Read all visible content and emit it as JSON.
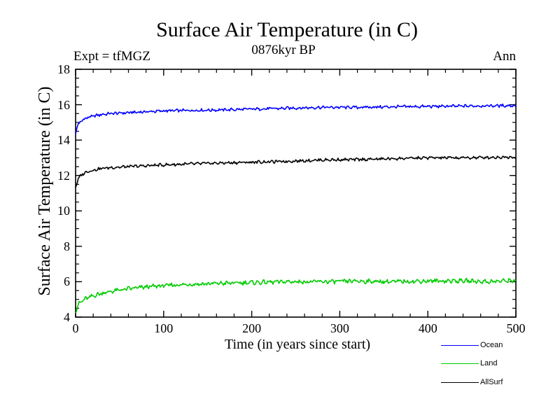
{
  "chart_data": {
    "type": "line",
    "title": "Surface Air Temperature (in C)",
    "subtitle": "0876kyr BP",
    "expt_label": "Expt = tfMGZ",
    "annotation": "Ann",
    "xlabel": "Time (in years since start)",
    "ylabel": "Surface Air Temperature (in C)",
    "xlim": [
      0,
      500
    ],
    "ylim": [
      4,
      18
    ],
    "x_major_ticks": [
      0,
      100,
      200,
      300,
      400,
      500
    ],
    "x_minor_step": 20,
    "y_major_ticks": [
      4,
      6,
      8,
      10,
      12,
      14,
      16,
      18
    ],
    "y_minor_step": 0.5,
    "grid": false,
    "frame_color": "#000000",
    "background_color": "#ffffff",
    "legend_position": "bottom-right",
    "sample_step_years": 1,
    "series": [
      {
        "name": "Ocean",
        "color": "#0000ff",
        "noise_amplitude": 0.09,
        "trend_keyframes": [
          [
            0,
            14.4
          ],
          [
            3,
            14.9
          ],
          [
            6,
            15.05
          ],
          [
            10,
            15.2
          ],
          [
            15,
            15.3
          ],
          [
            20,
            15.35
          ],
          [
            30,
            15.45
          ],
          [
            40,
            15.5
          ],
          [
            60,
            15.55
          ],
          [
            80,
            15.6
          ],
          [
            100,
            15.65
          ],
          [
            130,
            15.68
          ],
          [
            160,
            15.7
          ],
          [
            200,
            15.75
          ],
          [
            240,
            15.8
          ],
          [
            280,
            15.85
          ],
          [
            320,
            15.85
          ],
          [
            360,
            15.88
          ],
          [
            400,
            15.9
          ],
          [
            440,
            15.92
          ],
          [
            470,
            15.94
          ],
          [
            500,
            15.95
          ]
        ]
      },
      {
        "name": "Land",
        "color": "#00cc00",
        "noise_amplitude": 0.13,
        "trend_keyframes": [
          [
            0,
            4.35
          ],
          [
            3,
            4.7
          ],
          [
            6,
            4.85
          ],
          [
            10,
            5.0
          ],
          [
            15,
            5.1
          ],
          [
            20,
            5.2
          ],
          [
            30,
            5.35
          ],
          [
            40,
            5.45
          ],
          [
            60,
            5.6
          ],
          [
            80,
            5.7
          ],
          [
            100,
            5.78
          ],
          [
            130,
            5.85
          ],
          [
            160,
            5.9
          ],
          [
            200,
            5.95
          ],
          [
            240,
            6.0
          ],
          [
            280,
            6.0
          ],
          [
            320,
            6.03
          ],
          [
            360,
            6.0
          ],
          [
            400,
            6.04
          ],
          [
            440,
            6.05
          ],
          [
            470,
            6.0
          ],
          [
            500,
            6.08
          ]
        ]
      },
      {
        "name": "AllSurf",
        "color": "#000000",
        "noise_amplitude": 0.09,
        "trend_keyframes": [
          [
            0,
            11.35
          ],
          [
            3,
            11.8
          ],
          [
            6,
            12.0
          ],
          [
            10,
            12.15
          ],
          [
            15,
            12.25
          ],
          [
            20,
            12.3
          ],
          [
            30,
            12.4
          ],
          [
            40,
            12.45
          ],
          [
            60,
            12.5
          ],
          [
            80,
            12.55
          ],
          [
            100,
            12.6
          ],
          [
            130,
            12.65
          ],
          [
            160,
            12.7
          ],
          [
            200,
            12.75
          ],
          [
            240,
            12.8
          ],
          [
            280,
            12.88
          ],
          [
            320,
            12.9
          ],
          [
            360,
            12.95
          ],
          [
            400,
            13.0
          ],
          [
            440,
            13.0
          ],
          [
            470,
            13.02
          ],
          [
            500,
            13.05
          ]
        ]
      }
    ],
    "legend_order": [
      "Ocean",
      "Land",
      "AllSurf"
    ]
  }
}
